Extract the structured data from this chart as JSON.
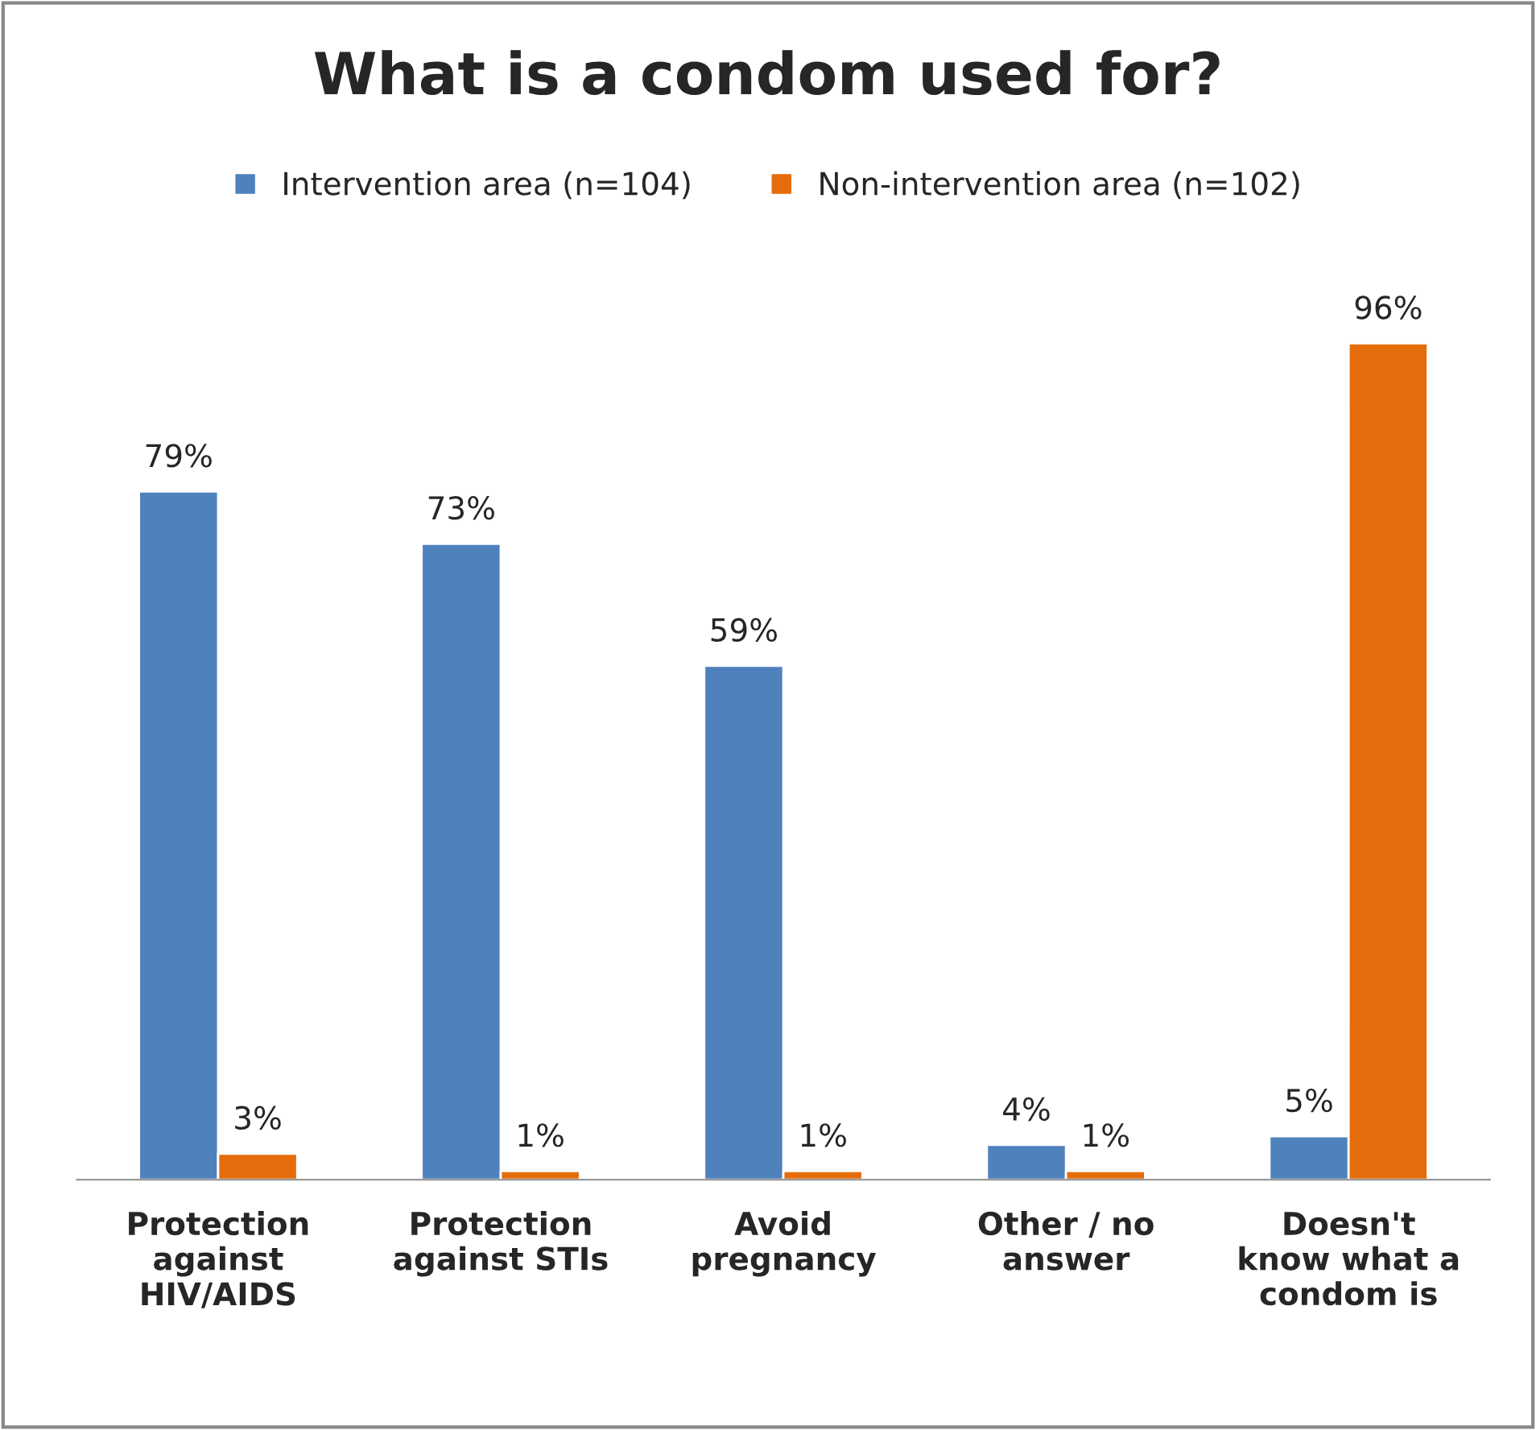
{
  "chart_data": {
    "type": "bar",
    "title": "What is a condom used for?",
    "categories": [
      "Protection\nagainst\nHIV/AIDS",
      "Protection\nagainst STIs",
      "Avoid\npregnancy",
      "Other / no\nanswer",
      "Doesn't\nknow what a\ncondom is"
    ],
    "series": [
      {
        "name": "Intervention area (n=104)",
        "color": "#4f81bd",
        "values": [
          79,
          73,
          59,
          4,
          5
        ],
        "value_labels": [
          "79%",
          "73%",
          "59%",
          "4%",
          "5%"
        ]
      },
      {
        "name": "Non-intervention area (n=102)",
        "color": "#e46c0a",
        "values": [
          3,
          1,
          1,
          1,
          96
        ],
        "value_labels": [
          "3%",
          "1%",
          "1%",
          "1%",
          "96%"
        ]
      }
    ],
    "legend": "top",
    "grid": false,
    "tick_labels": "x"
  }
}
